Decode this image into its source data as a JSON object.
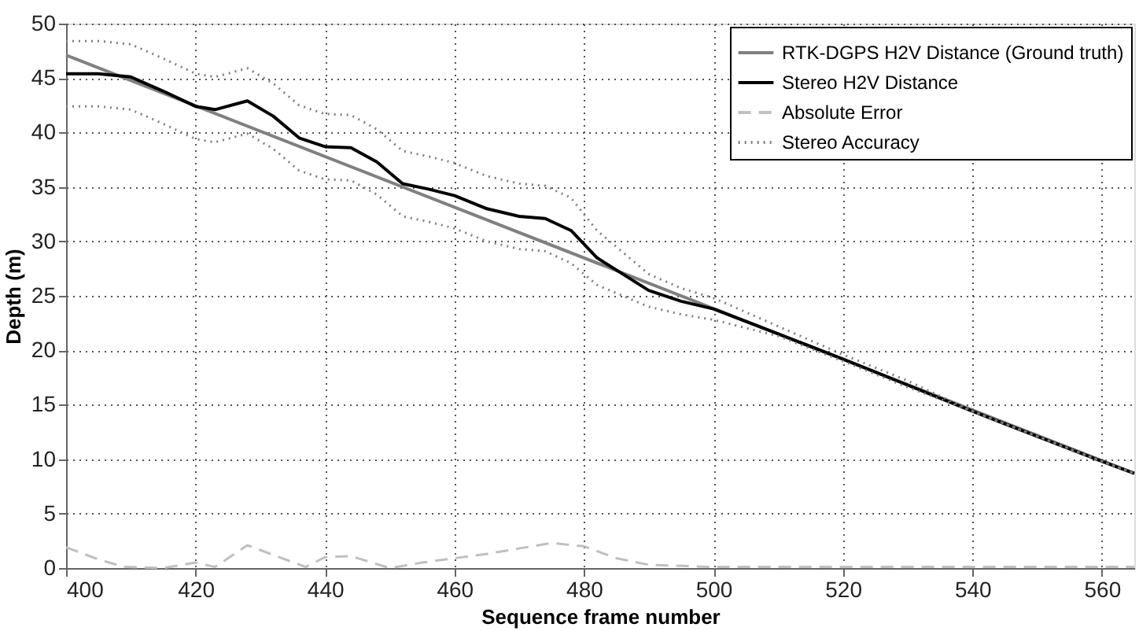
{
  "chart_data": {
    "type": "line",
    "xlabel": "Sequence frame number",
    "ylabel": "Depth (m)",
    "xlim": [
      400,
      565
    ],
    "xticks": [
      400,
      420,
      440,
      460,
      480,
      500,
      520,
      540,
      560
    ],
    "ylim": [
      0,
      50
    ],
    "yticks": [
      0,
      5,
      10,
      15,
      20,
      25,
      30,
      35,
      40,
      45,
      50
    ],
    "grid": true,
    "legend": "top right",
    "marker": "none",
    "series": [
      {
        "name": "RTK-DGPS H2V Distance (Ground truth)",
        "color": "#808080",
        "line_style": "solid",
        "x": [
          400,
          565
        ],
        "values": [
          47.1,
          8.7
        ]
      },
      {
        "name": "Stereo H2V Distance",
        "color": "#000000",
        "line_style": "solid",
        "x": [
          400,
          405,
          410,
          415,
          420,
          423,
          428,
          432,
          436,
          440,
          444,
          448,
          452,
          456,
          460,
          465,
          470,
          474,
          478,
          482,
          486,
          490,
          495,
          500,
          510,
          520,
          530,
          540,
          550,
          560,
          565
        ],
        "values": [
          45.4,
          45.4,
          45.1,
          43.8,
          42.4,
          42.1,
          42.9,
          41.5,
          39.5,
          38.7,
          38.6,
          37.3,
          35.3,
          34.8,
          34.2,
          33.0,
          32.3,
          32.1,
          31.0,
          28.5,
          27.0,
          25.5,
          24.5,
          23.8,
          21.5,
          19.2,
          16.8,
          14.4,
          12.1,
          9.8,
          8.7
        ]
      },
      {
        "name": "Absolute Error",
        "color": "#c0c0c0",
        "line_style": "dashed",
        "x": [
          400,
          405,
          409,
          415,
          420,
          423,
          428,
          432,
          437,
          440,
          444,
          450,
          455,
          460,
          465,
          470,
          475,
          480,
          485,
          490,
          500,
          565
        ],
        "values": [
          1.9,
          0.8,
          0.1,
          0.0,
          0.5,
          0.1,
          2.1,
          1.2,
          0.1,
          1.0,
          1.1,
          0.0,
          0.5,
          0.9,
          1.3,
          1.8,
          2.3,
          2.0,
          0.9,
          0.3,
          0.1,
          0.1
        ]
      },
      {
        "name": "Stereo Accuracy",
        "color": "#808080",
        "line_style": "dotted",
        "x": [
          400,
          405,
          410,
          415,
          420,
          423,
          428,
          432,
          436,
          440,
          444,
          448,
          452,
          456,
          460,
          465,
          470,
          474,
          478,
          482,
          486,
          490,
          495,
          500,
          510,
          520,
          530,
          540,
          550,
          560,
          565
        ],
        "values": [
          48.4,
          48.4,
          48.1,
          46.8,
          45.4,
          45.1,
          45.9,
          44.5,
          42.5,
          41.7,
          41.6,
          40.3,
          38.3,
          37.8,
          37.2,
          36.0,
          35.3,
          35.1,
          34.0,
          31.0,
          29.0,
          27.0,
          25.7,
          24.8,
          22.2,
          19.6,
          17.2,
          14.4,
          12.1,
          9.8,
          8.7
        ]
      },
      {
        "color": "#808080",
        "line_style": "dotted",
        "x": [
          400,
          405,
          410,
          415,
          420,
          423,
          428,
          432,
          436,
          440,
          444,
          448,
          452,
          456,
          460,
          465,
          470,
          474,
          478,
          482,
          486,
          490,
          495,
          500,
          510,
          520,
          530,
          540,
          550,
          560,
          565
        ],
        "values": [
          42.4,
          42.4,
          42.1,
          40.8,
          39.4,
          39.1,
          39.9,
          38.5,
          36.5,
          35.7,
          35.6,
          34.3,
          32.3,
          31.8,
          31.2,
          30.0,
          29.3,
          29.1,
          28.0,
          26.0,
          25.0,
          24.0,
          23.3,
          22.8,
          21.3,
          19.0,
          16.6,
          14.4,
          12.1,
          9.8,
          8.7
        ]
      }
    ]
  }
}
